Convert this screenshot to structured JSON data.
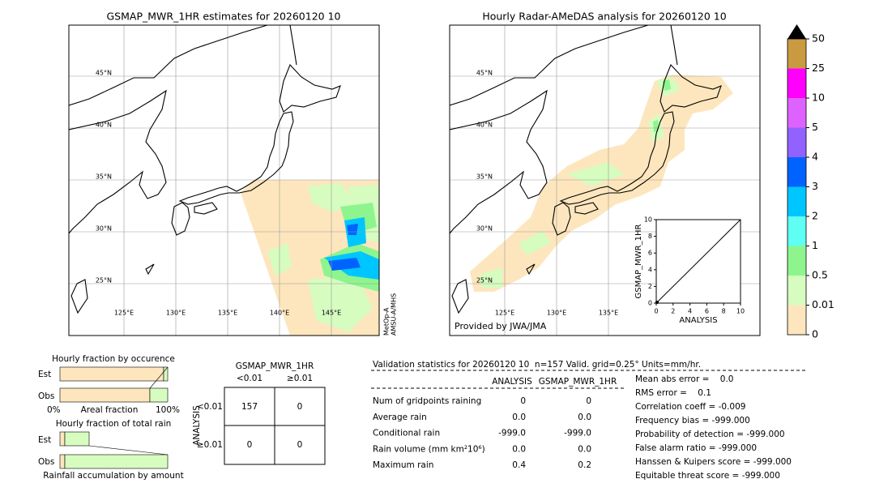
{
  "left_map": {
    "title": "GSMAP_MWR_1HR estimates for 20260120 10",
    "lat_labels": [
      "45°N",
      "40°N",
      "35°N",
      "30°N",
      "25°N"
    ],
    "lon_labels": [
      "125°E",
      "130°E",
      "135°E",
      "140°E",
      "145°E"
    ],
    "satellite": [
      "MetOp-A",
      "AMSU-A/MHS"
    ]
  },
  "right_map": {
    "title": "Hourly Radar-AMeDAS analysis for 20260120 10",
    "lat_labels": [
      "45°N",
      "40°N",
      "35°N",
      "30°N",
      "25°N"
    ],
    "lon_labels": [
      "125°E",
      "130°E",
      "135°E"
    ],
    "credit": "Provided by JWA/JMA"
  },
  "inset": {
    "ylabel": "GSMAP_MWR_1HR",
    "xlabel": "ANALYSIS",
    "xlim": [
      0,
      10
    ],
    "ylim": [
      0,
      10
    ],
    "xticks": [
      0,
      2,
      4,
      6,
      8,
      10
    ],
    "yticks": [
      0,
      2,
      4,
      6,
      8,
      10
    ]
  },
  "colorbar": {
    "levels": [
      0,
      0.01,
      0.5,
      1,
      2,
      3,
      4,
      5,
      10,
      25,
      50
    ],
    "colors": [
      "#fde6bd",
      "#d6fcc0",
      "#8ef58e",
      "#5ffff2",
      "#00c6ff",
      "#0062ff",
      "#9262ff",
      "#de62ff",
      "#ff00ff",
      "#c99a3f"
    ]
  },
  "occurrence": {
    "title": "Hourly fraction by occurence",
    "rows": [
      "Est",
      "Obs"
    ],
    "xlabel": "Areal fraction",
    "axis_left": "0%",
    "axis_right": "100%"
  },
  "total": {
    "title": "Hourly fraction of total rain",
    "rows": [
      "Est",
      "Obs"
    ],
    "xlabel": "Rainfall accumulation by amount"
  },
  "contingency": {
    "title": "GSMAP_MWR_1HR",
    "columns": [
      "<0.01",
      "≥0.01"
    ],
    "ylabel": "ANALYSIS",
    "rows": [
      "<0.01",
      "≥0.01"
    ],
    "cells": [
      [
        "157",
        "0"
      ],
      [
        "0",
        "0"
      ]
    ]
  },
  "validation": {
    "title": "Validation statistics for 20260120 10  n=157 Valid. grid=0.25° Units=mm/hr.",
    "headers": [
      "ANALYSIS",
      "GSMAP_MWR_1HR"
    ],
    "rows": [
      [
        "Num of gridpoints raining",
        "0",
        "0"
      ],
      [
        "Average rain",
        "0.0",
        "0.0"
      ],
      [
        "Conditional rain",
        "-999.0",
        "-999.0"
      ],
      [
        "Rain volume (mm km²10⁶)",
        "0.0",
        "0.0"
      ],
      [
        "Maximum rain",
        "0.4",
        "0.2"
      ]
    ],
    "scores": [
      "Mean abs error =    0.0",
      "RMS error =    0.1",
      "Correlation coeff = -0.009",
      "Frequency bias = -999.000",
      "Probability of detection = -999.000",
      "False alarm ratio = -999.000",
      "Hanssen & Kuipers score = -999.000",
      "Equitable threat score = -999.000"
    ]
  }
}
